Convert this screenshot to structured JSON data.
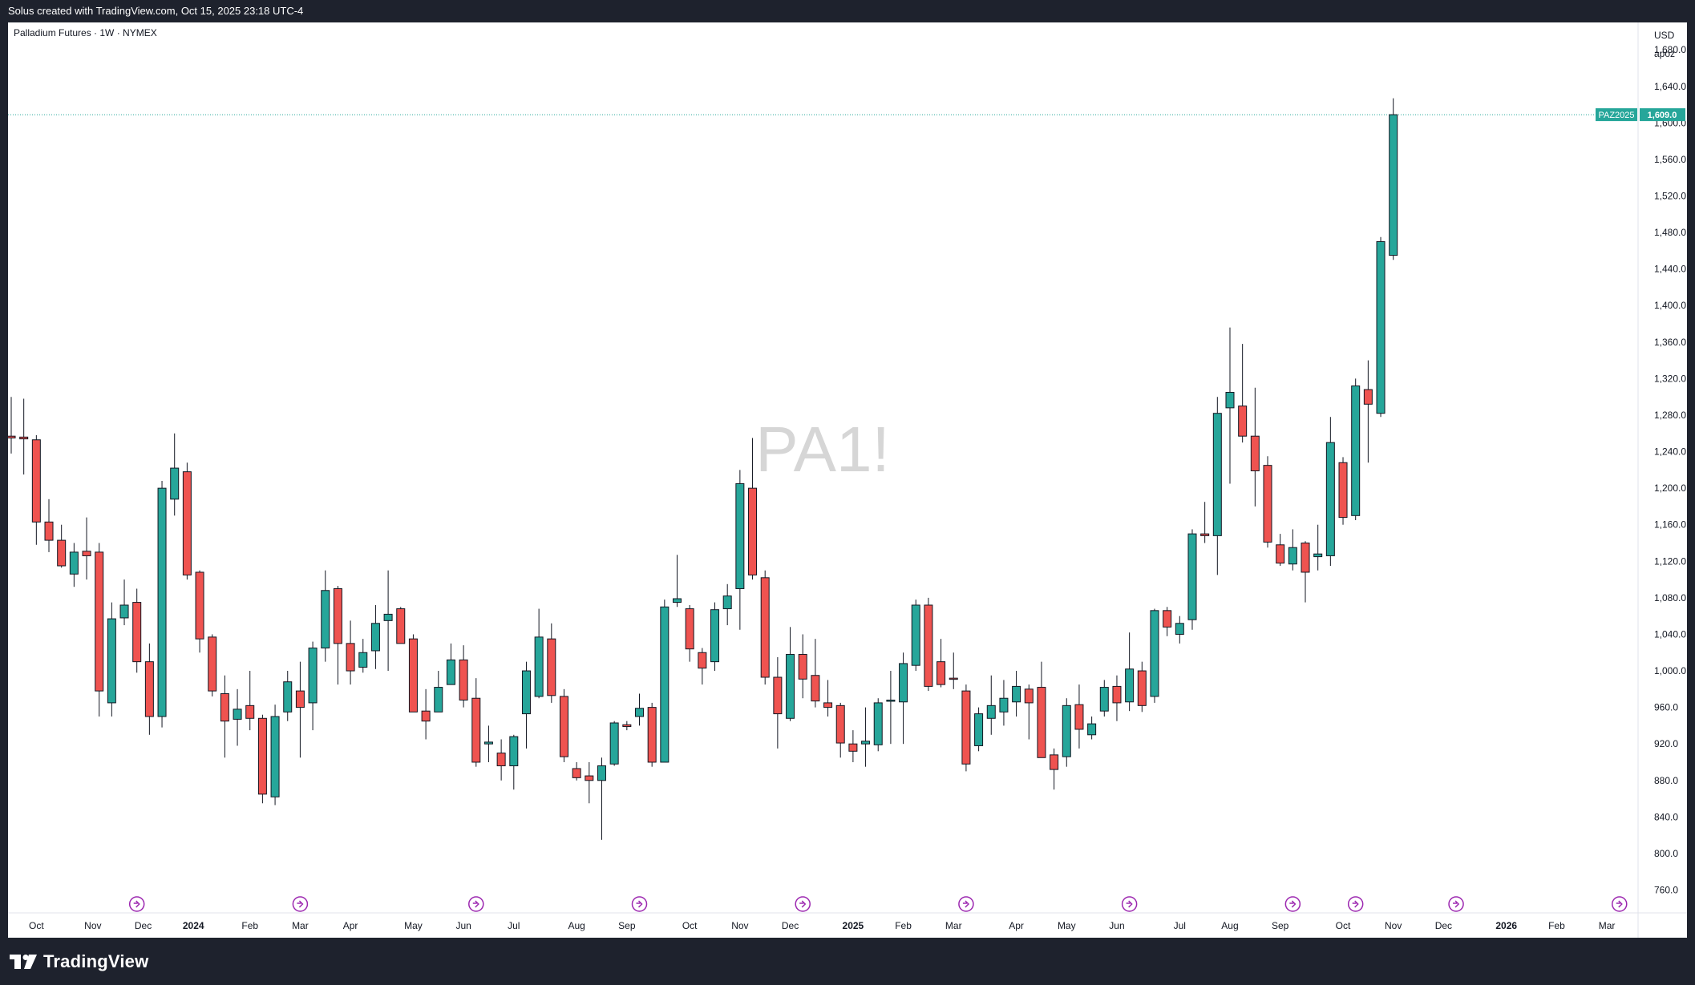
{
  "header": {
    "created_text": "Solus created with TradingView.com, Oct 15, 2025 23:18 UTC-4"
  },
  "chart_data": {
    "type": "candlestick",
    "title": "Palladium Futures · 1W · NYMEX",
    "watermark": "PA1!",
    "currency": "USD",
    "unit": "apoz",
    "ylim": [
      735,
      1710
    ],
    "y_ticks": [
      760,
      800,
      840,
      880,
      920,
      960,
      1000,
      1040,
      1080,
      1120,
      1160,
      1200,
      1240,
      1280,
      1320,
      1360,
      1400,
      1440,
      1480,
      1520,
      1560,
      1600,
      1640,
      1680
    ],
    "y_tick_labels": [
      "760.0",
      "800.0",
      "840.0",
      "880.0",
      "920.0",
      "960.0",
      "1,000.0",
      "1,040.0",
      "1,080.0",
      "1,120.0",
      "1,160.0",
      "1,200.0",
      "1,240.0",
      "1,280.0",
      "1,320.0",
      "1,360.0",
      "1,400.0",
      "1,440.0",
      "1,480.0",
      "1,520.0",
      "1,560.0",
      "1,600.0",
      "1,640.0",
      "1,680.0"
    ],
    "x_labels": [
      "Oct",
      "Nov",
      "Dec",
      "2024",
      "Feb",
      "Mar",
      "Apr",
      "May",
      "Jun",
      "Jul",
      "Aug",
      "Sep",
      "Oct",
      "Nov",
      "Dec",
      "2025",
      "Feb",
      "Mar",
      "Apr",
      "May",
      "Jun",
      "Jul",
      "Aug",
      "Sep",
      "Oct",
      "Nov",
      "Dec",
      "2026",
      "Feb",
      "Mar"
    ],
    "x_label_bold": [
      "2024",
      "2025",
      "2026"
    ],
    "x_label_weeks": [
      2,
      6.5,
      10.5,
      14.5,
      19,
      23,
      27,
      32,
      36,
      40,
      45,
      49,
      54,
      58,
      62,
      67,
      71,
      75,
      80,
      84,
      88,
      93,
      97,
      101,
      106,
      110,
      114,
      119,
      123,
      127
    ],
    "event_marker_weeks": [
      10,
      23,
      37,
      50,
      63,
      76,
      89,
      102,
      107,
      115,
      128
    ],
    "last_price": 1609.0,
    "last_price_label": "1,609.0",
    "symbol_label": "PAZ2025",
    "colors": {
      "up": "#26a69a",
      "down": "#ef5350",
      "marker": "#9c27b0",
      "watermark": "#d6d6d6"
    },
    "candles": [
      [
        1257,
        1300,
        1238,
        1255
      ],
      [
        1256,
        1298,
        1215,
        1254
      ],
      [
        1253,
        1258,
        1138,
        1163
      ],
      [
        1163,
        1188,
        1130,
        1143
      ],
      [
        1143,
        1160,
        1113,
        1115
      ],
      [
        1106,
        1140,
        1092,
        1130
      ],
      [
        1131,
        1168,
        1100,
        1126
      ],
      [
        1130,
        1140,
        950,
        978
      ],
      [
        965,
        1075,
        950,
        1057
      ],
      [
        1058,
        1100,
        1050,
        1072
      ],
      [
        1075,
        1090,
        998,
        1010
      ],
      [
        1010,
        1030,
        930,
        950
      ],
      [
        950,
        1208,
        938,
        1200
      ],
      [
        1188,
        1260,
        1170,
        1222
      ],
      [
        1218,
        1228,
        1100,
        1105
      ],
      [
        1108,
        1110,
        1020,
        1035
      ],
      [
        1037,
        1040,
        972,
        978
      ],
      [
        975,
        995,
        905,
        945
      ],
      [
        947,
        980,
        918,
        958
      ],
      [
        962,
        1000,
        935,
        948
      ],
      [
        948,
        952,
        855,
        865
      ],
      [
        862,
        963,
        853,
        950
      ],
      [
        955,
        1000,
        945,
        988
      ],
      [
        978,
        1010,
        905,
        960
      ],
      [
        965,
        1032,
        935,
        1025
      ],
      [
        1025,
        1110,
        1010,
        1088
      ],
      [
        1090,
        1093,
        985,
        1030
      ],
      [
        1030,
        1055,
        985,
        1000
      ],
      [
        1004,
        1035,
        998,
        1020
      ],
      [
        1022,
        1072,
        1002,
        1052
      ],
      [
        1055,
        1110,
        1000,
        1062
      ],
      [
        1068,
        1070,
        1030,
        1030
      ],
      [
        1035,
        1040,
        955,
        955
      ],
      [
        956,
        980,
        925,
        945
      ],
      [
        955,
        1000,
        955,
        982
      ],
      [
        985,
        1030,
        985,
        1012
      ],
      [
        1012,
        1028,
        960,
        968
      ],
      [
        970,
        992,
        895,
        900
      ],
      [
        920,
        940,
        900,
        922
      ],
      [
        910,
        925,
        880,
        896
      ],
      [
        896,
        930,
        870,
        928
      ],
      [
        953,
        1010,
        915,
        1000
      ],
      [
        972,
        1068,
        970,
        1037
      ],
      [
        1035,
        1052,
        965,
        973
      ],
      [
        972,
        980,
        900,
        906
      ],
      [
        893,
        900,
        880,
        883
      ],
      [
        885,
        900,
        855,
        880
      ],
      [
        880,
        905,
        815,
        896
      ],
      [
        898,
        945,
        896,
        943
      ],
      [
        941,
        945,
        935,
        939
      ],
      [
        950,
        975,
        940,
        959
      ],
      [
        960,
        965,
        895,
        900
      ],
      [
        900,
        1078,
        900,
        1070
      ],
      [
        1075,
        1127,
        1070,
        1079
      ],
      [
        1068,
        1072,
        1010,
        1024
      ],
      [
        1020,
        1025,
        985,
        1003
      ],
      [
        1010,
        1075,
        1000,
        1067
      ],
      [
        1068,
        1095,
        1050,
        1082
      ],
      [
        1090,
        1220,
        1045,
        1205
      ],
      [
        1200,
        1255,
        1100,
        1105
      ],
      [
        1102,
        1110,
        985,
        993
      ],
      [
        993,
        1015,
        915,
        953
      ],
      [
        948,
        1048,
        945,
        1018
      ],
      [
        1018,
        1040,
        970,
        991
      ],
      [
        995,
        1035,
        960,
        967
      ],
      [
        965,
        990,
        950,
        960
      ],
      [
        962,
        965,
        905,
        921
      ],
      [
        920,
        935,
        900,
        912
      ],
      [
        920,
        960,
        895,
        923
      ],
      [
        919,
        970,
        912,
        965
      ],
      [
        967,
        1000,
        920,
        968
      ],
      [
        966,
        1020,
        920,
        1008
      ],
      [
        1006,
        1078,
        1000,
        1072
      ],
      [
        1072,
        1080,
        978,
        983
      ],
      [
        1010,
        1035,
        982,
        985
      ],
      [
        992,
        1020,
        980,
        991
      ],
      [
        978,
        985,
        890,
        898
      ],
      [
        918,
        960,
        912,
        953
      ],
      [
        948,
        995,
        930,
        962
      ],
      [
        955,
        990,
        940,
        970
      ],
      [
        966,
        1000,
        950,
        983
      ],
      [
        980,
        985,
        925,
        965
      ],
      [
        982,
        1010,
        910,
        905
      ],
      [
        908,
        915,
        870,
        892
      ],
      [
        906,
        970,
        895,
        962
      ],
      [
        963,
        985,
        915,
        936
      ],
      [
        930,
        950,
        925,
        942
      ],
      [
        956,
        990,
        950,
        982
      ],
      [
        983,
        995,
        945,
        965
      ],
      [
        966,
        1042,
        956,
        1002
      ],
      [
        1000,
        1010,
        955,
        962
      ],
      [
        972,
        1068,
        965,
        1066
      ],
      [
        1066,
        1070,
        1038,
        1048
      ],
      [
        1040,
        1060,
        1030,
        1052
      ],
      [
        1056,
        1155,
        1045,
        1150
      ],
      [
        1150,
        1185,
        1140,
        1148
      ],
      [
        1148,
        1300,
        1105,
        1282
      ],
      [
        1288,
        1376,
        1205,
        1305
      ],
      [
        1290,
        1358,
        1250,
        1257
      ],
      [
        1257,
        1310,
        1180,
        1219
      ],
      [
        1225,
        1235,
        1135,
        1141
      ],
      [
        1138,
        1150,
        1115,
        1118
      ],
      [
        1117,
        1155,
        1110,
        1135
      ],
      [
        1140,
        1142,
        1075,
        1108
      ],
      [
        1125,
        1160,
        1110,
        1128
      ],
      [
        1126,
        1278,
        1115,
        1250
      ],
      [
        1228,
        1234,
        1160,
        1168
      ],
      [
        1170,
        1320,
        1165,
        1312
      ],
      [
        1308,
        1340,
        1228,
        1292
      ],
      [
        1282,
        1475,
        1278,
        1470
      ],
      [
        1455,
        1627,
        1450,
        1609
      ]
    ]
  },
  "footer": {
    "brand": "TradingView"
  }
}
